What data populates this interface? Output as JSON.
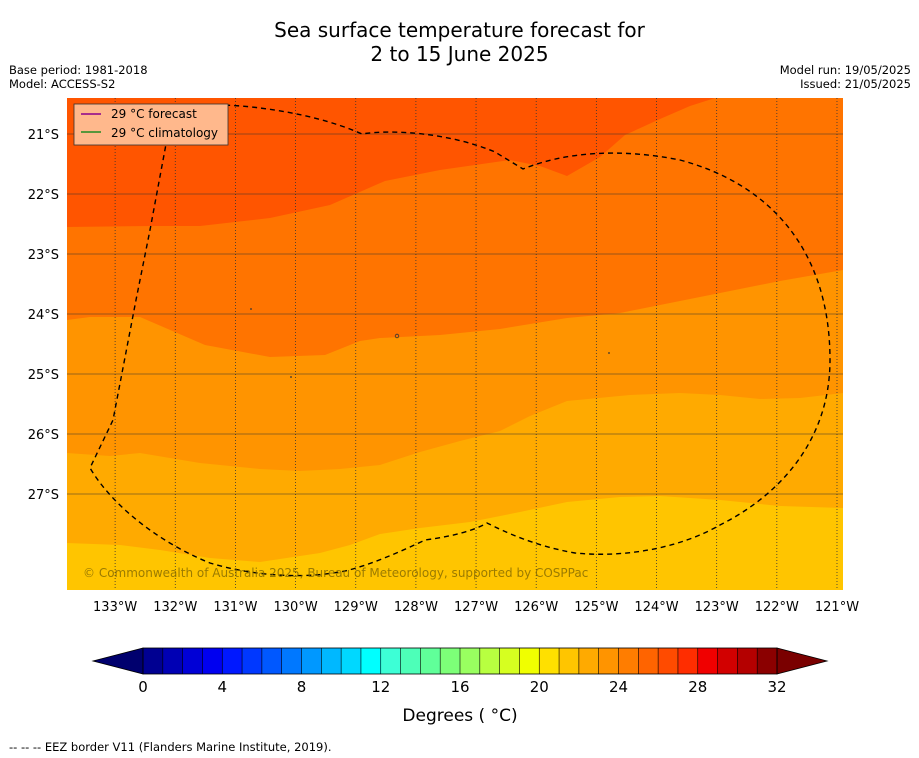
{
  "chart_data": {
    "type": "heatmap",
    "title_line1": "Sea surface temperature forecast for",
    "title_line2": "2 to 15 June 2025",
    "base_period": "Base period: 1981-2018",
    "model": "Model: ACCESS-S2",
    "model_run": "Model run: 19/05/2025",
    "issued": "Issued: 21/05/2025",
    "lon_ticks": [
      "133°W",
      "132°W",
      "131°W",
      "130°W",
      "129°W",
      "128°W",
      "127°W",
      "126°W",
      "125°W",
      "124°W",
      "123°W",
      "122°W",
      "121°W"
    ],
    "lat_ticks": [
      "21°S",
      "22°S",
      "23°S",
      "24°S",
      "25°S",
      "26°S",
      "27°S"
    ],
    "lon_range": [
      -133.8,
      -120.9
    ],
    "lat_range": [
      -28.6,
      -20.4
    ],
    "grid": true,
    "legend": {
      "placement": "top-left",
      "entries": [
        {
          "label": "29 °C  forecast",
          "color": "#8b008b"
        },
        {
          "label": "29 °C  climatology",
          "color": "#228b22"
        }
      ]
    },
    "temperature_bands": [
      {
        "range": [
          22,
          23
        ],
        "color": "#ffc500"
      },
      {
        "range": [
          23,
          24
        ],
        "color": "#ffaa00"
      },
      {
        "range": [
          24,
          25
        ],
        "color": "#ff9400"
      },
      {
        "range": [
          25,
          26
        ],
        "color": "#ff7400"
      },
      {
        "range": [
          26,
          27
        ],
        "color": "#ff5500"
      }
    ],
    "copyright": "© Commonwealth of Australia 2025, Bureau of Meteorology, supported by COSPPac",
    "colorbar": {
      "label": "Degrees ( °C)",
      "ticks": [
        "0",
        "4",
        "8",
        "12",
        "16",
        "20",
        "24",
        "28",
        "32"
      ],
      "min": 0,
      "max": 32,
      "step": 1,
      "colors": [
        "#000091",
        "#0000b4",
        "#0000d6",
        "#0000f0",
        "#0018ff",
        "#0038ff",
        "#0058ff",
        "#0078ff",
        "#0098ff",
        "#00b8ff",
        "#00d8ff",
        "#00ffff",
        "#3dffd6",
        "#4dffb8",
        "#60ff99",
        "#7dff78",
        "#99ff60",
        "#b8ff40",
        "#d6ff20",
        "#f0ff00",
        "#ffe000",
        "#ffc500",
        "#ffaa00",
        "#ff9400",
        "#ff7d00",
        "#ff6400",
        "#ff4b00",
        "#ff2d00",
        "#f00000",
        "#d20000",
        "#b40000",
        "#8b0000"
      ],
      "under_color": "#00006e",
      "over_color": "#7a0000"
    },
    "footer": "--  --  -- EEZ border V11 (Flanders Marine Institute, 2019)."
  }
}
